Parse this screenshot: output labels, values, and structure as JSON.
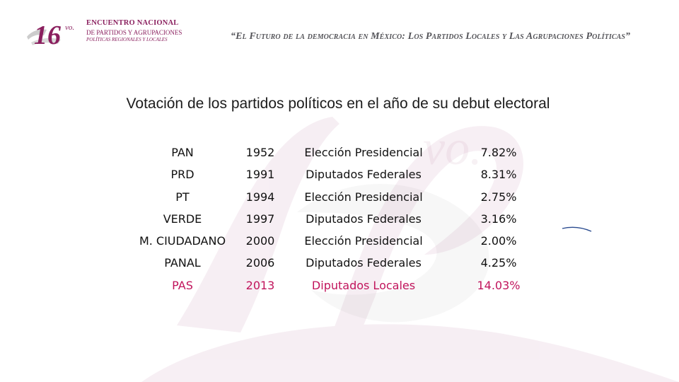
{
  "header": {
    "logo": {
      "number": "16",
      "ordinal": "vo.",
      "line1": "ENCUENTRO NACIONAL",
      "line2": "DE PARTIDOS Y AGRUPACIONES",
      "line3": "POLÍTICAS REGIONALES Y LOCALES"
    },
    "quote": "“El Futuro de la democracia en México: Los Partidos Locales y Las Agrupaciones Políticas”"
  },
  "title": "Votación de los partidos políticos en el año de su debut electoral",
  "results": [
    {
      "party": "PAN",
      "year": "1952",
      "election": "Elección Presidencial",
      "vote": "7.82%"
    },
    {
      "party": "PRD",
      "year": "1991",
      "election": "Diputados Federales",
      "vote": "8.31%"
    },
    {
      "party": "PT",
      "year": "1994",
      "election": "Elección Presidencial",
      "vote": "2.75%"
    },
    {
      "party": "VERDE",
      "year": "1997",
      "election": "Diputados Federales",
      "vote": "3.16%"
    },
    {
      "party": "M. CIUDADANO",
      "year": "2000",
      "election": "Elección Presidencial",
      "vote": "2.00%"
    },
    {
      "party": "PANAL",
      "year": "2006",
      "election": "Diputados Federales",
      "vote": "4.25%"
    },
    {
      "party": "PAS",
      "year": "2013",
      "election": "Diputados Locales",
      "vote": "14.03%",
      "highlight": true
    }
  ],
  "colors": {
    "brand": "#8a1f5e",
    "highlight": "#c1145c",
    "text": "#111111",
    "quote": "#55555a"
  }
}
